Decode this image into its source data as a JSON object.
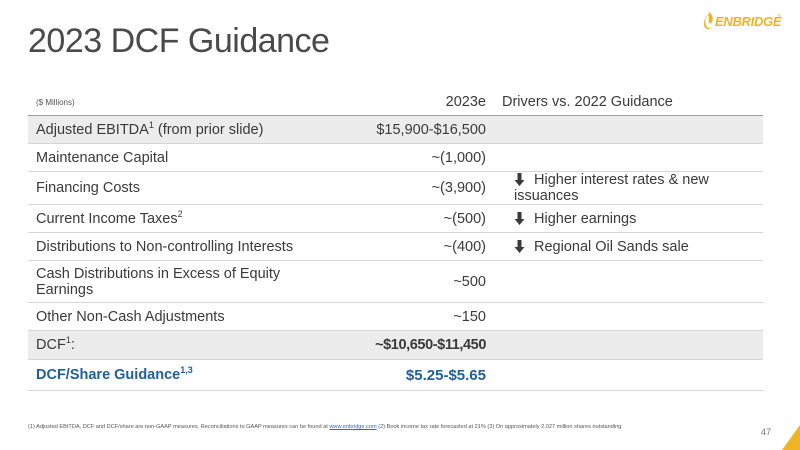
{
  "slide": {
    "title": "2023 DCF Guidance",
    "logo_text": "ENBRIDGE",
    "logo_tm": "®",
    "page_number": "47",
    "footnote": {
      "prefix": "(1) Adjusted EBITDA, DCF and DCF/share are non-GAAP measures. Reconciliations to GAAP measures can be found at ",
      "link": "www.enbridge.com",
      "suffix": " (2) Book income tax rate forecasted at 21% (3) On approximately 2,027 million shares outstanding"
    },
    "colors": {
      "brand_yellow": "#f0b323",
      "highlight_blue": "#1f5f9a",
      "row_shade": "#ececec"
    }
  },
  "table": {
    "headers": {
      "units": "($ Millions)",
      "year": "2023e",
      "drivers": "Drivers vs. 2022 Guidance"
    },
    "rows": [
      {
        "label": "Adjusted EBITDA",
        "sup": "1",
        "label_suffix": " (from prior slide)",
        "value": "$15,900-$16,500",
        "driver": ""
      },
      {
        "label": "Maintenance Capital",
        "sup": "",
        "label_suffix": "",
        "value": "~(1,000)",
        "driver": ""
      },
      {
        "label": "Financing Costs",
        "sup": "",
        "label_suffix": "",
        "value": "~(3,900)",
        "driver": "Higher interest rates & new issuances",
        "driver_icon": "arrow-down-icon"
      },
      {
        "label": "Current Income Taxes",
        "sup": "2",
        "label_suffix": "",
        "value": "~(500)",
        "driver": "Higher earnings",
        "driver_icon": "arrow-down-icon"
      },
      {
        "label": "Distributions to Non-controlling Interests",
        "sup": "",
        "label_suffix": "",
        "value": "~(400)",
        "driver": "Regional Oil Sands sale",
        "driver_icon": "arrow-down-icon"
      },
      {
        "label": "Cash Distributions in Excess of Equity Earnings",
        "sup": "",
        "label_suffix": "",
        "value": "~500",
        "driver": ""
      },
      {
        "label": "Other Non-Cash Adjustments",
        "sup": "",
        "label_suffix": "",
        "value": "~150",
        "driver": ""
      }
    ],
    "dcf_row": {
      "label": "DCF",
      "sup": "1",
      "label_suffix": ":",
      "value": "~$10,650-$11,450"
    },
    "share_row": {
      "label": "DCF/Share Guidance",
      "sup": "1,3",
      "value": "$5.25-$5.65"
    }
  }
}
